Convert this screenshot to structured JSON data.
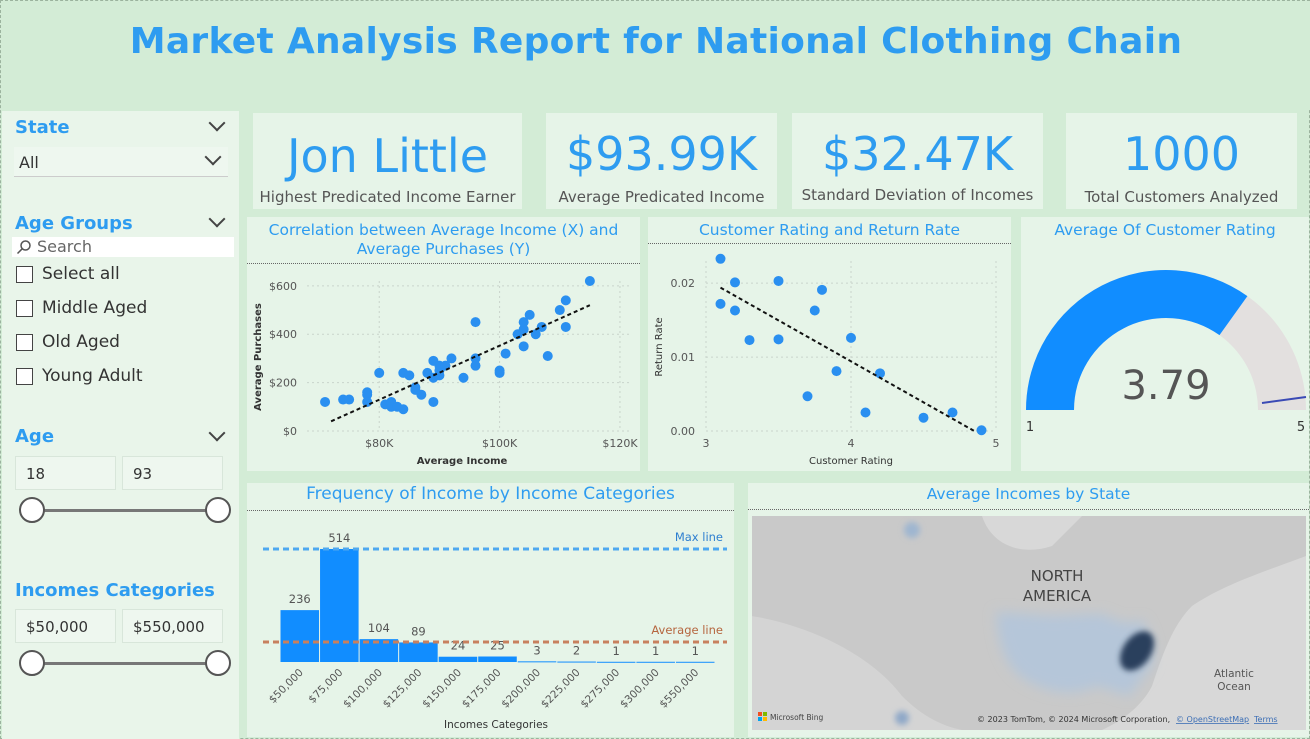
{
  "title": "Market Analysis Report for National Clothing Chain",
  "filters": {
    "state": {
      "label": "State",
      "value": "All"
    },
    "age_groups": {
      "label": "Age Groups",
      "search_placeholder": "Search",
      "options": [
        "Select all",
        "Middle Aged",
        "Old Aged",
        "Young Adult"
      ]
    },
    "age": {
      "label": "Age",
      "min": "18",
      "max": "93"
    },
    "income_categories": {
      "label": "Incomes Categories",
      "min": "$50,000",
      "max": "$550,000"
    }
  },
  "kpis": [
    {
      "value": "Jon Little",
      "label": "Highest Predicated Income Earner"
    },
    {
      "value": "$93.99K",
      "label": "Average Predicated Income"
    },
    {
      "value": "$32.47K",
      "label": "Standard Deviation of Incomes"
    },
    {
      "value": "1000",
      "label": "Total Customers Analyzed"
    }
  ],
  "scatter1": {
    "title": "Correlation between Average Income (X) and Average Purchases (Y)",
    "xlabel": "Average Income",
    "ylabel": "Average Purchases",
    "xticks": [
      "$80K",
      "$100K",
      "$120K"
    ],
    "yticks": [
      "$0",
      "$200",
      "$400",
      "$600"
    ]
  },
  "scatter2": {
    "title": "Customer Rating and Return Rate",
    "xlabel": "Customer Rating",
    "ylabel": "Return Rate",
    "xticks": [
      "3",
      "4",
      "5"
    ],
    "yticks": [
      "0.00",
      "0.01",
      "0.02"
    ]
  },
  "gauge": {
    "title": "Average Of Customer Rating",
    "value": "3.79",
    "min": "1",
    "max": "5"
  },
  "histogram": {
    "title": "Frequency of Income by Income Categories",
    "xlabel": "Incomes Categories",
    "max_line_label": "Max line",
    "avg_line_label": "Average line"
  },
  "map": {
    "title": "Average Incomes by State",
    "continent_label_1": "NORTH",
    "continent_label_2": "AMERICA",
    "ocean_label_1": "Atlantic",
    "ocean_label_2": "Ocean",
    "brand": "Microsoft Bing",
    "attribution": "© 2023 TomTom, © 2024 Microsoft Corporation,",
    "osm": "© OpenStreetMap",
    "terms": "Terms"
  },
  "chart_data": [
    {
      "type": "scatter",
      "title": "Correlation between Average Income (X) and Average Purchases (Y)",
      "xlabel": "Average Income",
      "ylabel": "Average Purchases",
      "xlim": [
        68000,
        122000
      ],
      "ylim": [
        0,
        620
      ],
      "points": [
        [
          71000,
          120
        ],
        [
          74000,
          130
        ],
        [
          75000,
          130
        ],
        [
          78000,
          120
        ],
        [
          78000,
          150
        ],
        [
          78000,
          160
        ],
        [
          80000,
          240
        ],
        [
          81000,
          110
        ],
        [
          82000,
          100
        ],
        [
          82000,
          120
        ],
        [
          83000,
          100
        ],
        [
          84000,
          90
        ],
        [
          84000,
          240
        ],
        [
          85000,
          230
        ],
        [
          86000,
          180
        ],
        [
          86000,
          170
        ],
        [
          87000,
          150
        ],
        [
          88000,
          240
        ],
        [
          89000,
          220
        ],
        [
          89000,
          290
        ],
        [
          89000,
          120
        ],
        [
          90000,
          250
        ],
        [
          90000,
          270
        ],
        [
          90000,
          230
        ],
        [
          91000,
          270
        ],
        [
          92000,
          300
        ],
        [
          94000,
          220
        ],
        [
          96000,
          270
        ],
        [
          96000,
          300
        ],
        [
          96000,
          450
        ],
        [
          100000,
          240
        ],
        [
          100000,
          250
        ],
        [
          101000,
          320
        ],
        [
          103000,
          400
        ],
        [
          104000,
          350
        ],
        [
          104000,
          420
        ],
        [
          104000,
          450
        ],
        [
          105000,
          480
        ],
        [
          106000,
          400
        ],
        [
          107000,
          430
        ],
        [
          108000,
          310
        ],
        [
          110000,
          500
        ],
        [
          111000,
          540
        ],
        [
          111000,
          430
        ],
        [
          115000,
          620
        ]
      ],
      "trend": [
        [
          72000,
          40
        ],
        [
          115000,
          520
        ]
      ]
    },
    {
      "type": "scatter",
      "title": "Customer Rating and Return Rate",
      "xlabel": "Customer Rating",
      "ylabel": "Return Rate",
      "xlim": [
        3.0,
        5.0
      ],
      "ylim": [
        0,
        0.023
      ],
      "points": [
        [
          3.1,
          0.0233
        ],
        [
          3.1,
          0.0172
        ],
        [
          3.2,
          0.0201
        ],
        [
          3.2,
          0.0163
        ],
        [
          3.3,
          0.0123
        ],
        [
          3.5,
          0.0203
        ],
        [
          3.5,
          0.0124
        ],
        [
          3.7,
          0.0047
        ],
        [
          3.75,
          0.0163
        ],
        [
          3.8,
          0.0191
        ],
        [
          3.9,
          0.0081
        ],
        [
          4.0,
          0.0126
        ],
        [
          4.1,
          0.0025
        ],
        [
          4.2,
          0.0078
        ],
        [
          4.5,
          0.0018
        ],
        [
          4.7,
          0.0025
        ],
        [
          4.9,
          0.0001
        ]
      ],
      "trend": [
        [
          3.1,
          0.0194
        ],
        [
          4.85,
          0.0
        ]
      ]
    },
    {
      "type": "bar",
      "title": "Frequency of Income by Income Categories",
      "xlabel": "Incomes Categories",
      "categories": [
        "$50,000",
        "$75,000",
        "$100,000",
        "$125,000",
        "$150,000",
        "$175,000",
        "$200,000",
        "$225,000",
        "$275,000",
        "$300,000",
        "$550,000"
      ],
      "values": [
        236,
        514,
        104,
        89,
        24,
        25,
        3,
        2,
        1,
        1,
        1
      ],
      "max_line": 514,
      "average_line": 91
    }
  ],
  "colors": {
    "accent": "#2e9cf0",
    "bar": "#118dff",
    "gauge_fill": "#118dff",
    "gauge_rest": "#e3e0df",
    "avg_line": "#c8805e",
    "max_line": "#4ea8ef"
  }
}
